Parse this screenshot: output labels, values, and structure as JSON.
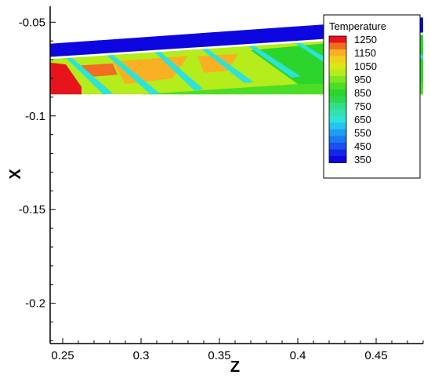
{
  "chart_data": {
    "type": "heatmap",
    "title": "",
    "xlabel": "Z",
    "ylabel": "X",
    "xlim": [
      0.242,
      0.48
    ],
    "ylim": [
      -0.2215,
      -0.0415
    ],
    "x_ticks": [
      {
        "value": 0.25,
        "label": "0.25"
      },
      {
        "value": 0.3,
        "label": "0.3"
      },
      {
        "value": 0.35,
        "label": "0.35"
      },
      {
        "value": 0.4,
        "label": "0.4"
      },
      {
        "value": 0.45,
        "label": "0.45"
      }
    ],
    "y_ticks": [
      {
        "value": -0.2,
        "label": "-0.2"
      },
      {
        "value": -0.15,
        "label": "-0.15"
      },
      {
        "value": -0.1,
        "label": "-0.1"
      },
      {
        "value": -0.05,
        "label": "-0.05"
      }
    ],
    "legend": {
      "title": "Temperature",
      "placement": "top-right",
      "levels": [
        {
          "value": 1250,
          "label": "1250",
          "color": "#e8141c"
        },
        {
          "value": 1200,
          "label": "",
          "color": "#f26d22"
        },
        {
          "value": 1150,
          "label": "1150",
          "color": "#f9b022"
        },
        {
          "value": 1100,
          "label": "",
          "color": "#f0d21a"
        },
        {
          "value": 1050,
          "label": "1050",
          "color": "#d6e81a"
        },
        {
          "value": 1000,
          "label": "",
          "color": "#b4ec1c"
        },
        {
          "value": 950,
          "label": "950",
          "color": "#7ee521"
        },
        {
          "value": 900,
          "label": "",
          "color": "#4ddd26"
        },
        {
          "value": 850,
          "label": "850",
          "color": "#2bd52c"
        },
        {
          "value": 800,
          "label": "",
          "color": "#2ad94f"
        },
        {
          "value": 750,
          "label": "750",
          "color": "#33de86"
        },
        {
          "value": 700,
          "label": "",
          "color": "#33e0ae"
        },
        {
          "value": 650,
          "label": "650",
          "color": "#2de2d8"
        },
        {
          "value": 600,
          "label": "",
          "color": "#23c4f0"
        },
        {
          "value": 550,
          "label": "550",
          "color": "#1f9ef0"
        },
        {
          "value": 500,
          "label": "",
          "color": "#1a78f0"
        },
        {
          "value": 450,
          "label": "450",
          "color": "#1a4ff0"
        },
        {
          "value": 400,
          "label": "",
          "color": "#1525e8"
        },
        {
          "value": 350,
          "label": "350",
          "color": "#0d06e0"
        }
      ]
    },
    "field": {
      "wall_band": {
        "top": [
          [
            0.242,
            -0.0615
          ],
          [
            0.48,
            -0.0475
          ]
        ],
        "bottom": [
          [
            0.242,
            -0.0685
          ],
          [
            0.48,
            -0.0555
          ]
        ],
        "temperature": 350
      },
      "region_background_temperature": 1000,
      "regions": [
        {
          "name": "hot-corner",
          "temperature": 1250,
          "polygon": [
            [
              0.242,
              -0.0715
            ],
            [
              0.252,
              -0.0725
            ],
            [
              0.262,
              -0.0845
            ],
            [
              0.262,
              -0.0885
            ],
            [
              0.242,
              -0.0885
            ]
          ]
        },
        {
          "name": "hot-spot-1",
          "temperature": 1200,
          "polygon": [
            [
              0.262,
              -0.073
            ],
            [
              0.282,
              -0.072
            ],
            [
              0.285,
              -0.078
            ],
            [
              0.27,
              -0.079
            ],
            [
              0.262,
              -0.076
            ]
          ]
        },
        {
          "name": "warm-zone-1",
          "temperature": 1150,
          "polygon": [
            [
              0.282,
              -0.071
            ],
            [
              0.33,
              -0.068
            ],
            [
              0.32,
              -0.08
            ],
            [
              0.29,
              -0.083
            ]
          ]
        },
        {
          "name": "warm-zone-2",
          "temperature": 1150,
          "polygon": [
            [
              0.336,
              -0.068
            ],
            [
              0.362,
              -0.067
            ],
            [
              0.355,
              -0.076
            ],
            [
              0.34,
              -0.077
            ]
          ]
        },
        {
          "name": "cool-zone-lower",
          "temperature": 900,
          "polygon": [
            [
              0.3,
              -0.0885
            ],
            [
              0.4,
              -0.083
            ],
            [
              0.48,
              -0.07
            ],
            [
              0.48,
              -0.0885
            ]
          ]
        },
        {
          "name": "cool-zone-right",
          "temperature": 850,
          "polygon": [
            [
              0.37,
              -0.065
            ],
            [
              0.48,
              -0.0565
            ],
            [
              0.48,
              -0.082
            ],
            [
              0.4,
              -0.083
            ]
          ]
        },
        {
          "name": "jet-1",
          "temperature": 650,
          "polygon": [
            [
              0.252,
              -0.069
            ],
            [
              0.256,
              -0.069
            ],
            [
              0.282,
              -0.088
            ],
            [
              0.276,
              -0.0885
            ]
          ]
        },
        {
          "name": "jet-2",
          "temperature": 650,
          "polygon": [
            [
              0.278,
              -0.0675
            ],
            [
              0.282,
              -0.0675
            ],
            [
              0.312,
              -0.088
            ],
            [
              0.306,
              -0.0885
            ]
          ]
        },
        {
          "name": "jet-3",
          "temperature": 650,
          "polygon": [
            [
              0.308,
              -0.0655
            ],
            [
              0.312,
              -0.0655
            ],
            [
              0.34,
              -0.086
            ],
            [
              0.334,
              -0.0865
            ]
          ]
        },
        {
          "name": "jet-4",
          "temperature": 650,
          "polygon": [
            [
              0.338,
              -0.064
            ],
            [
              0.342,
              -0.064
            ],
            [
              0.372,
              -0.082
            ],
            [
              0.366,
              -0.0825
            ]
          ]
        },
        {
          "name": "jet-5",
          "temperature": 650,
          "polygon": [
            [
              0.368,
              -0.0625
            ],
            [
              0.372,
              -0.0625
            ],
            [
              0.402,
              -0.079
            ],
            [
              0.396,
              -0.0795
            ]
          ]
        },
        {
          "name": "jet-6",
          "temperature": 650,
          "polygon": [
            [
              0.398,
              -0.061
            ],
            [
              0.402,
              -0.061
            ],
            [
              0.432,
              -0.076
            ],
            [
              0.426,
              -0.0765
            ]
          ]
        },
        {
          "name": "jet-7",
          "temperature": 650,
          "polygon": [
            [
              0.428,
              -0.0595
            ],
            [
              0.432,
              -0.0595
            ],
            [
              0.462,
              -0.0735
            ],
            [
              0.456,
              -0.074
            ]
          ]
        },
        {
          "name": "jet-8",
          "temperature": 650,
          "polygon": [
            [
              0.456,
              -0.058
            ],
            [
              0.46,
              -0.058
            ],
            [
              0.48,
              -0.068
            ],
            [
              0.48,
              -0.07
            ]
          ]
        }
      ]
    }
  }
}
